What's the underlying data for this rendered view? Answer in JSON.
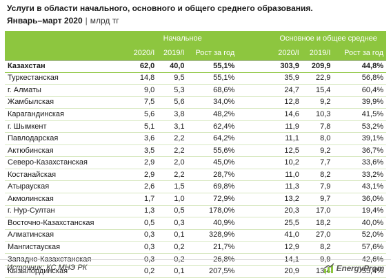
{
  "header": {
    "title": "Услуги в области начального, основного и общего среднего образования.",
    "period": "Январь–март 2020",
    "separator": "|",
    "unit": "млрд тг"
  },
  "table": {
    "group1": "Начальное",
    "group2": "Основное и общее среднее",
    "columns": [
      "2020/I",
      "2019/I",
      "Рост за год",
      "2020/I",
      "2019/I",
      "Рост за год"
    ],
    "total": {
      "name": "Казахстан",
      "values": [
        "62,0",
        "40,0",
        "55,1%",
        "303,9",
        "209,9",
        "44,8%"
      ]
    },
    "rows": [
      {
        "name": "Туркестанская",
        "values": [
          "14,8",
          "9,5",
          "55,1%",
          "35,9",
          "22,9",
          "56,8%"
        ]
      },
      {
        "name": "г. Алматы",
        "values": [
          "9,0",
          "5,3",
          "68,6%",
          "24,7",
          "15,4",
          "60,4%"
        ]
      },
      {
        "name": "Жамбылская",
        "values": [
          "7,5",
          "5,6",
          "34,0%",
          "12,8",
          "9,2",
          "39,9%"
        ]
      },
      {
        "name": "Карагандинская",
        "values": [
          "5,6",
          "3,8",
          "48,2%",
          "14,6",
          "10,3",
          "41,5%"
        ]
      },
      {
        "name": "г. Шымкент",
        "values": [
          "5,1",
          "3,1",
          "62,4%",
          "11,9",
          "7,8",
          "53,2%"
        ]
      },
      {
        "name": "Павлодарская",
        "values": [
          "3,6",
          "2,2",
          "64,2%",
          "11,1",
          "8,0",
          "39,1%"
        ]
      },
      {
        "name": "Актюбинская",
        "values": [
          "3,5",
          "2,2",
          "55,6%",
          "12,5",
          "9,2",
          "36,7%"
        ]
      },
      {
        "name": "Северо-Казахстанская",
        "values": [
          "2,9",
          "2,0",
          "45,0%",
          "10,2",
          "7,7",
          "33,6%"
        ]
      },
      {
        "name": "Костанайская",
        "values": [
          "2,9",
          "2,2",
          "28,7%",
          "11,0",
          "8,2",
          "33,2%"
        ]
      },
      {
        "name": "Атырауская",
        "values": [
          "2,6",
          "1,5",
          "69,8%",
          "11,3",
          "7,9",
          "43,1%"
        ]
      },
      {
        "name": "Акмолинская",
        "values": [
          "1,7",
          "1,0",
          "72,9%",
          "13,2",
          "9,7",
          "36,0%"
        ]
      },
      {
        "name": "г. Нур-Султан",
        "values": [
          "1,3",
          "0,5",
          "178,0%",
          "20,3",
          "17,0",
          "19,4%"
        ]
      },
      {
        "name": "Восточно-Казахстанская",
        "values": [
          "0,5",
          "0,3",
          "40,9%",
          "25,5",
          "18,2",
          "40,0%"
        ]
      },
      {
        "name": "Алматинская",
        "values": [
          "0,3",
          "0,1",
          "328,9%",
          "41,0",
          "27,0",
          "52,0%"
        ]
      },
      {
        "name": "Мангистауская",
        "values": [
          "0,3",
          "0,2",
          "21,7%",
          "12,9",
          "8,2",
          "57,6%"
        ]
      },
      {
        "name": "Западно-Казахстанская",
        "values": [
          "0,3",
          "0,2",
          "26,8%",
          "14,1",
          "9,9",
          "42,6%"
        ]
      },
      {
        "name": "Кызылординская",
        "values": [
          "0,2",
          "0,1",
          "207,5%",
          "20,9",
          "13,4",
          "55,4%"
        ]
      }
    ]
  },
  "footer": {
    "source": "Источник: КС МНЭ РК",
    "logo_text": "EnergyProm",
    "logo_icon": "energyprom-logo-icon"
  },
  "colors": {
    "header_green": "#8dc63f",
    "row_divider": "#d7e8c0"
  }
}
